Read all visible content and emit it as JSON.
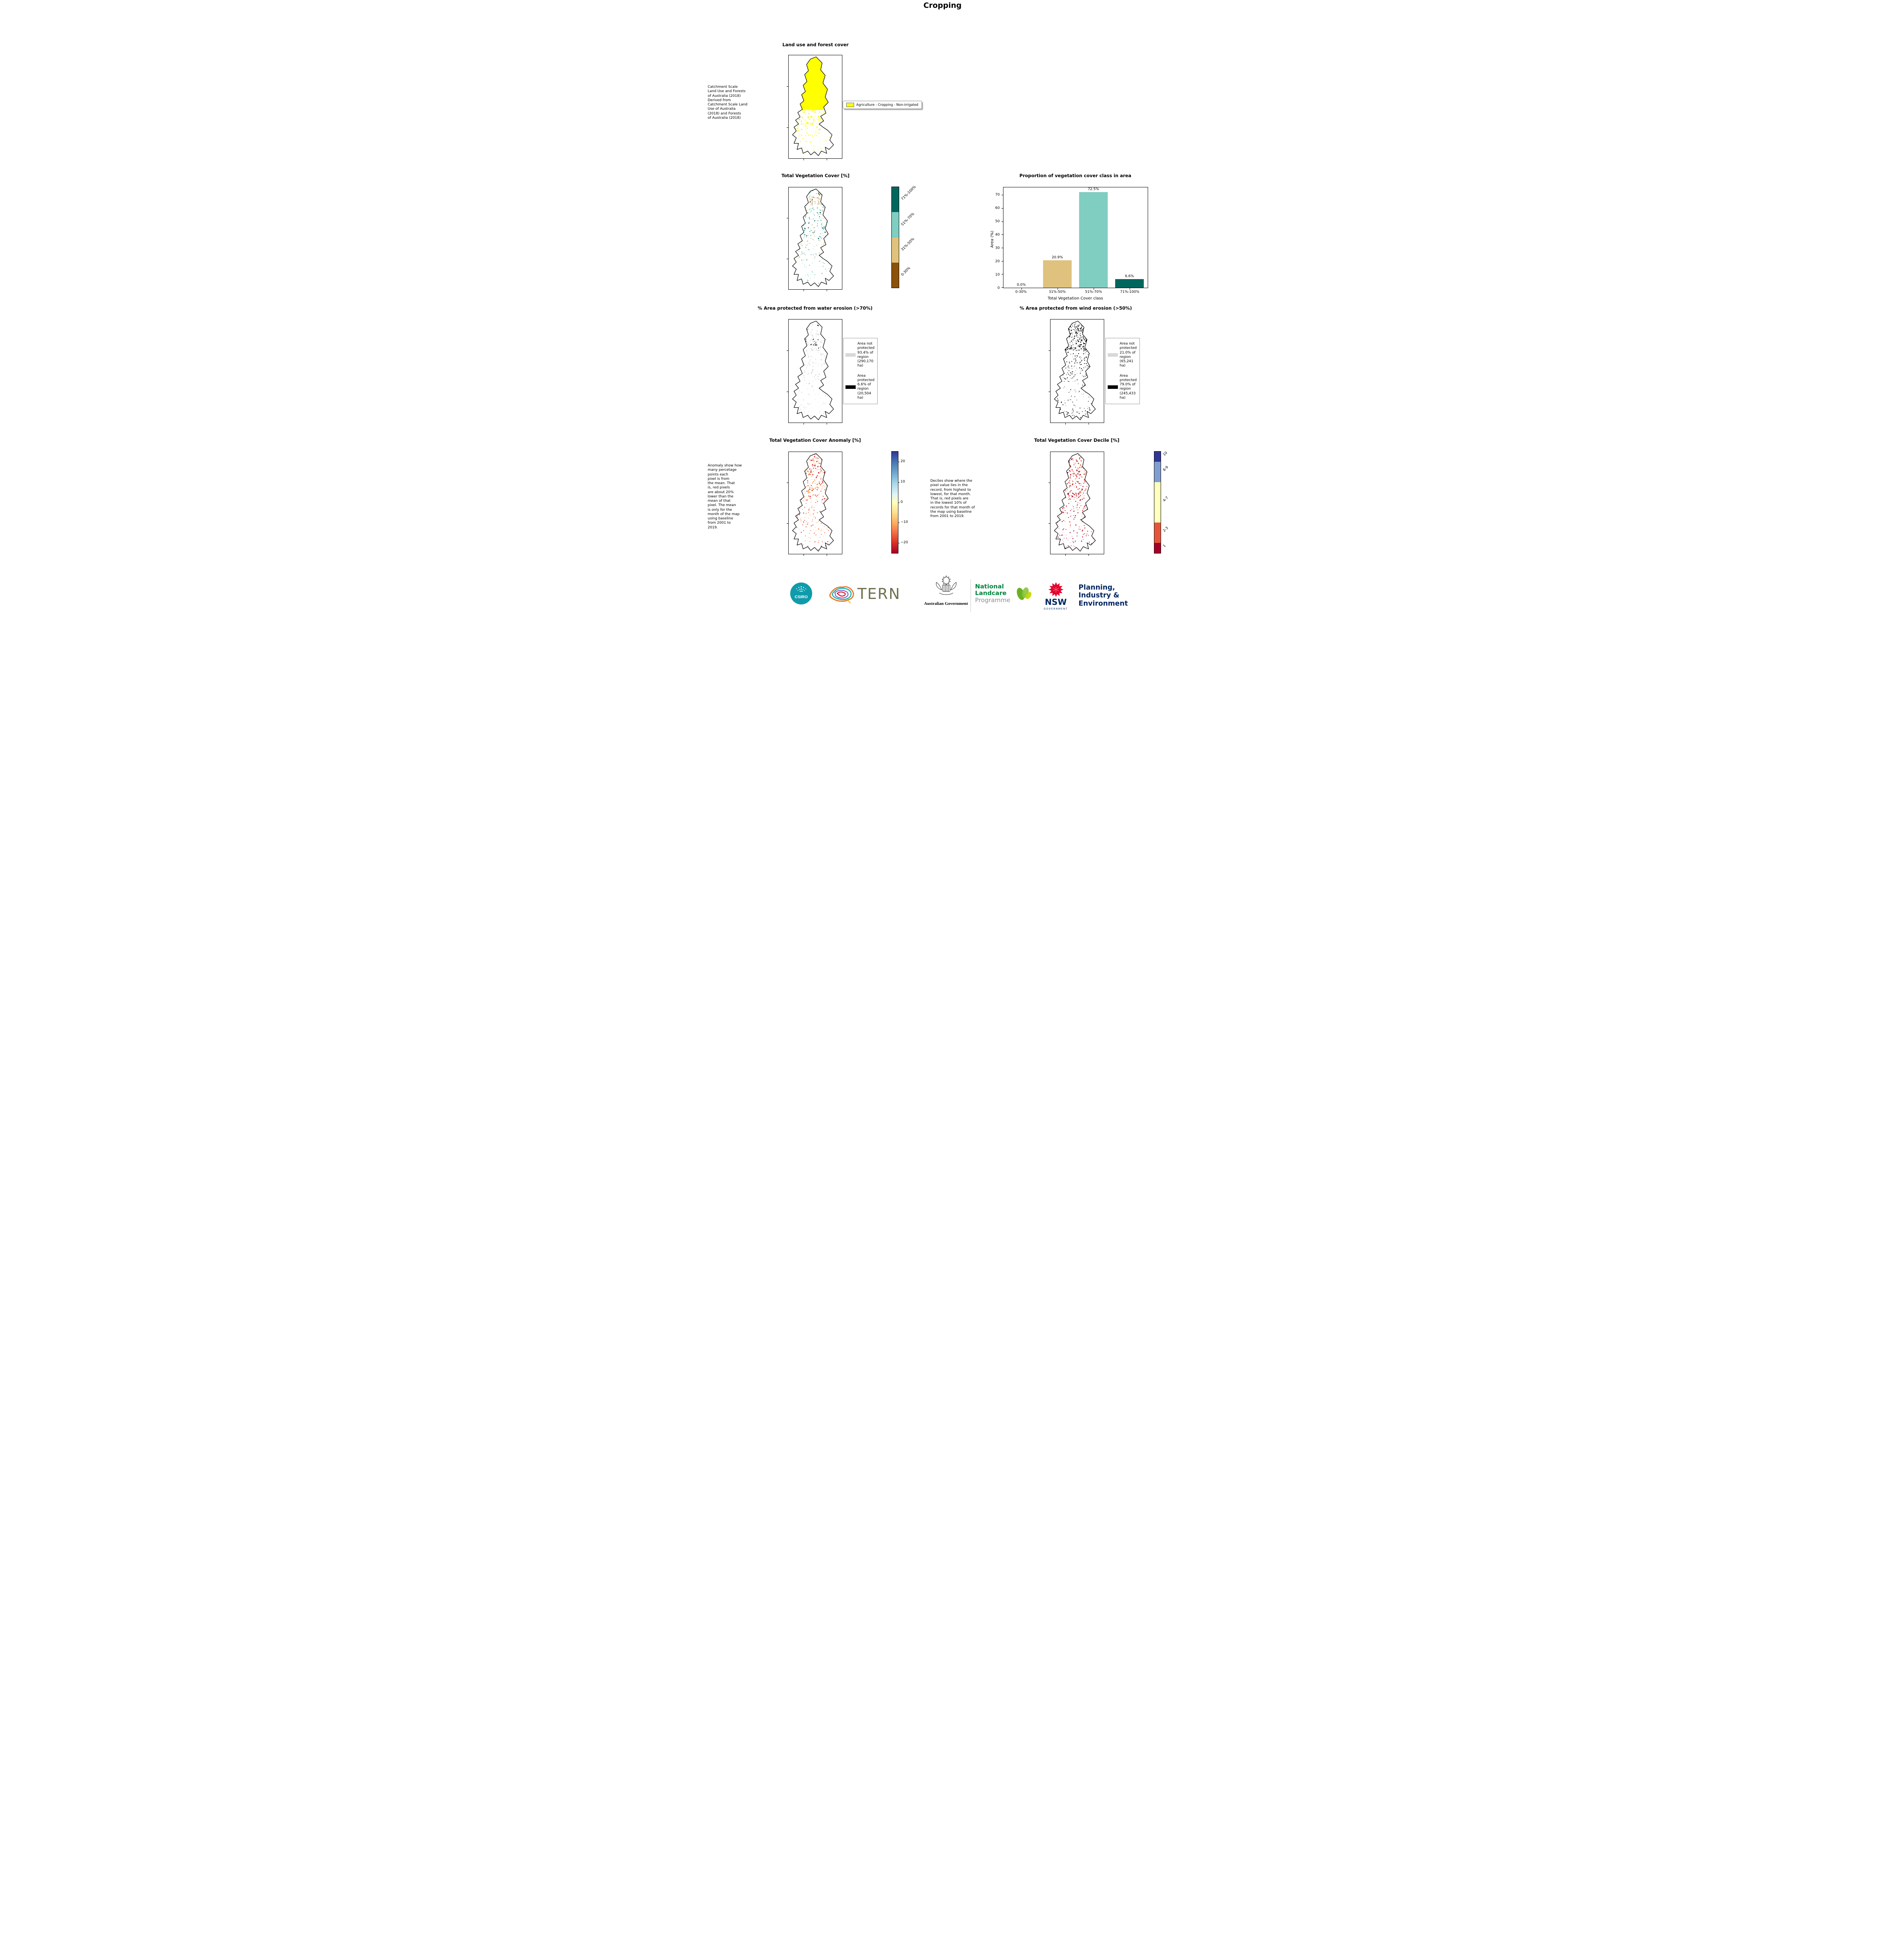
{
  "page": {
    "title": "Cropping"
  },
  "panels": {
    "landuse": {
      "title": "Land use and forest cover",
      "caption": "Catchment Scale\nLand Use and Forests\nof Australia (2018)\nDerived from\nCatchment Scale Land\nUse of Australia\n(2018) and Forests\nof Australia (2018)",
      "legend": [
        {
          "label": "Agriculture - Cropping - Non-irrigated",
          "color": "#ffff00"
        }
      ]
    },
    "tvc": {
      "title": "Total Vegetation Cover [%]",
      "colorbar": [
        {
          "label": "71%-100%",
          "color": "#01665e"
        },
        {
          "label": "51%-70%",
          "color": "#80cdc1"
        },
        {
          "label": "31%-50%",
          "color": "#dfc27d"
        },
        {
          "label": "0-30%",
          "color": "#8c510a"
        }
      ]
    },
    "water": {
      "title": "% Area protected from water erosion (>70%)",
      "legend": [
        {
          "label": "Area not protected 93.4% of region (290,170 ha)",
          "color": "#d8d8d8"
        },
        {
          "label": "Area protected 6.6% of region (20,504 ha)",
          "color": "#000000"
        }
      ]
    },
    "wind": {
      "title": "% Area protected from wind erosion (>50%)",
      "legend": [
        {
          "label": "Area not protected 21.0% of region (65,241 ha)",
          "color": "#d8d8d8"
        },
        {
          "label": "Area protected 79.0% of region (245,433 ha)",
          "color": "#000000"
        }
      ]
    },
    "anomaly": {
      "title": "Total Vegetation Cover Anomaly [%]",
      "caption": "Anomaly show how\nmany percetage\npoints each\npixel is from\nthe mean. That\nis, red pixels\nare about 20%\nlower than the\nmean of that\npixel. The mean\nis only for the\nmonth of the map\nusing baseline\nfrom 2001 to\n2019.",
      "colorbar_ticks": [
        "20",
        "10",
        "0",
        "−10",
        "−20"
      ],
      "colorbar_range": [
        -25,
        25
      ]
    },
    "decile": {
      "title": "Total Vegetation Cover Decile [%]",
      "caption": "Deciles show where the\npixel value lies in the\nrecord, from highest to\nlowest, for that month.\nThat is, red pixels are\nin the lowest 10% of\nrecords for that month of\nthe map using baseline\nfrom 2001 to 2019.",
      "colorbar": [
        {
          "label": "10",
          "color": "#313695",
          "span": 1
        },
        {
          "label": "8-9",
          "color": "#7f9ecf",
          "span": 2
        },
        {
          "label": "4-7",
          "color": "#ffffbf",
          "span": 4
        },
        {
          "label": "2-3",
          "color": "#e6553a",
          "span": 2
        },
        {
          "label": "1",
          "color": "#a50026",
          "span": 1
        }
      ]
    }
  },
  "chart_data": {
    "type": "bar",
    "title": "Proportion of vegetation cover class in area",
    "categories": [
      "0-30%",
      "31%-50%",
      "51%-70%",
      "71%-100%"
    ],
    "values": [
      0.0,
      20.9,
      72.5,
      6.6
    ],
    "bar_labels": [
      "0.0%",
      "20.9%",
      "72.5%",
      "6.6%"
    ],
    "colors": [
      "#8c510a",
      "#dfc27d",
      "#80cdc1",
      "#01665e"
    ],
    "xlabel": "Total Vegetation Cover class",
    "ylabel": "Area (%)",
    "ylim": [
      0,
      76
    ],
    "yticks": [
      0,
      10,
      20,
      30,
      40,
      50,
      60,
      70
    ],
    "legend_position": "none",
    "grid": false
  },
  "footer": {
    "csiro_label": "CSIRO",
    "tern_label": "TERN",
    "aus_gov_label": "Australian Government",
    "landcare_lines": [
      "National",
      "Landcare",
      "Programme"
    ],
    "nsw_label": "NSW",
    "nsw_sub_label": "GOVERNMENT",
    "dpie_lines": [
      "Planning,",
      "Industry &",
      "Environment"
    ]
  }
}
